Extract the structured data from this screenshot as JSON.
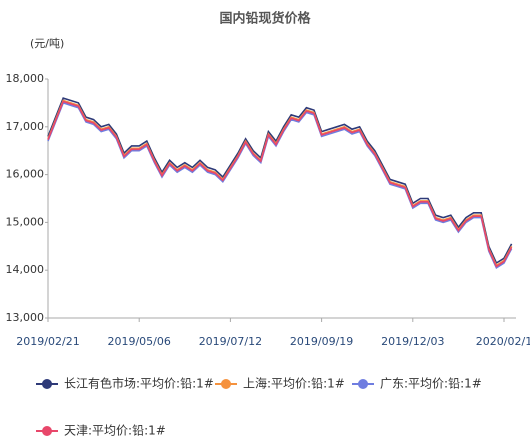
{
  "chart_data": {
    "type": "line",
    "title": "国内铅现货价格",
    "y_label": "(元/吨)",
    "categories": [
      "2019/02/21",
      null,
      null,
      null,
      null,
      null,
      null,
      null,
      null,
      null,
      null,
      null,
      "2019/05/06",
      null,
      null,
      null,
      null,
      null,
      null,
      null,
      null,
      null,
      null,
      null,
      "2019/07/12",
      null,
      null,
      null,
      null,
      null,
      null,
      null,
      null,
      null,
      null,
      null,
      "2019/09/19",
      null,
      null,
      null,
      null,
      null,
      null,
      null,
      null,
      null,
      null,
      null,
      "2019/12/03",
      null,
      null,
      null,
      null,
      null,
      null,
      null,
      null,
      null,
      null,
      null,
      "2020/02/1",
      null
    ],
    "series": [
      {
        "name": "长江有色市场:平均价:铅:1#",
        "color": "#2e3a78",
        "values": [
          16800,
          17200,
          17600,
          17550,
          17500,
          17200,
          17150,
          17000,
          17050,
          16850,
          16450,
          16600,
          16600,
          16700,
          16350,
          16050,
          16300,
          16150,
          16250,
          16150,
          16300,
          16150,
          16100,
          15950,
          16200,
          16450,
          16750,
          16500,
          16350,
          16900,
          16700,
          17000,
          17250,
          17200,
          17400,
          17350,
          16900,
          16950,
          17000,
          17050,
          16950,
          17000,
          16700,
          16500,
          16200,
          15900,
          15850,
          15800,
          15400,
          15500,
          15500,
          15150,
          15100,
          15150,
          14900,
          15100,
          15200,
          15200,
          14500,
          14150,
          14250,
          14550
        ]
      },
      {
        "name": "上海:平均价:铅:1#",
        "color": "#f5923e",
        "values": [
          16750,
          17150,
          17550,
          17500,
          17450,
          17150,
          17100,
          16950,
          17000,
          16800,
          16400,
          16550,
          16550,
          16650,
          16300,
          16000,
          16250,
          16100,
          16200,
          16100,
          16250,
          16100,
          16050,
          15900,
          16150,
          16400,
          16700,
          16450,
          16300,
          16850,
          16650,
          16950,
          17200,
          17150,
          17350,
          17300,
          16850,
          16900,
          16950,
          17000,
          16900,
          16950,
          16650,
          16450,
          16150,
          15850,
          15800,
          15750,
          15350,
          15450,
          15450,
          15100,
          15050,
          15100,
          14850,
          15050,
          15150,
          15150,
          14450,
          14100,
          14200,
          14500
        ]
      },
      {
        "name": "广东:平均价:铅:1#",
        "color": "#6f7de0",
        "values": [
          16700,
          17100,
          17500,
          17450,
          17400,
          17100,
          17050,
          16900,
          16950,
          16750,
          16350,
          16500,
          16500,
          16600,
          16250,
          15950,
          16200,
          16050,
          16150,
          16050,
          16200,
          16050,
          16000,
          15850,
          16100,
          16350,
          16650,
          16400,
          16250,
          16800,
          16600,
          16900,
          17150,
          17100,
          17300,
          17250,
          16800,
          16850,
          16900,
          16950,
          16850,
          16900,
          16600,
          16400,
          16100,
          15800,
          15750,
          15700,
          15300,
          15400,
          15400,
          15050,
          15000,
          15050,
          14800,
          15000,
          15100,
          15100,
          14400,
          14050,
          14150,
          14450
        ]
      },
      {
        "name": "天津:平均价:铅:1#",
        "color": "#e8476a",
        "values": [
          16730,
          17130,
          17530,
          17480,
          17430,
          17130,
          17080,
          16930,
          16980,
          16780,
          16380,
          16530,
          16530,
          16630,
          16280,
          15980,
          16230,
          16080,
          16180,
          16080,
          16230,
          16080,
          16030,
          15880,
          16130,
          16380,
          16680,
          16430,
          16280,
          16830,
          16630,
          16930,
          17180,
          17130,
          17330,
          17280,
          16830,
          16880,
          16930,
          16980,
          16880,
          16930,
          16630,
          16430,
          16130,
          15830,
          15780,
          15730,
          15330,
          15430,
          15430,
          15080,
          15030,
          15080,
          14830,
          15030,
          15130,
          15130,
          14430,
          14080,
          14180,
          14480
        ]
      }
    ],
    "ylim": [
      13000,
      18000
    ],
    "yticks": [
      {
        "value": 13000,
        "label": "13,000"
      },
      {
        "value": 14000,
        "label": "14,000"
      },
      {
        "value": 15000,
        "label": "15,000"
      },
      {
        "value": 16000,
        "label": "16,000"
      },
      {
        "value": 17000,
        "label": "17,000"
      },
      {
        "value": 18000,
        "label": "18,000"
      }
    ]
  }
}
